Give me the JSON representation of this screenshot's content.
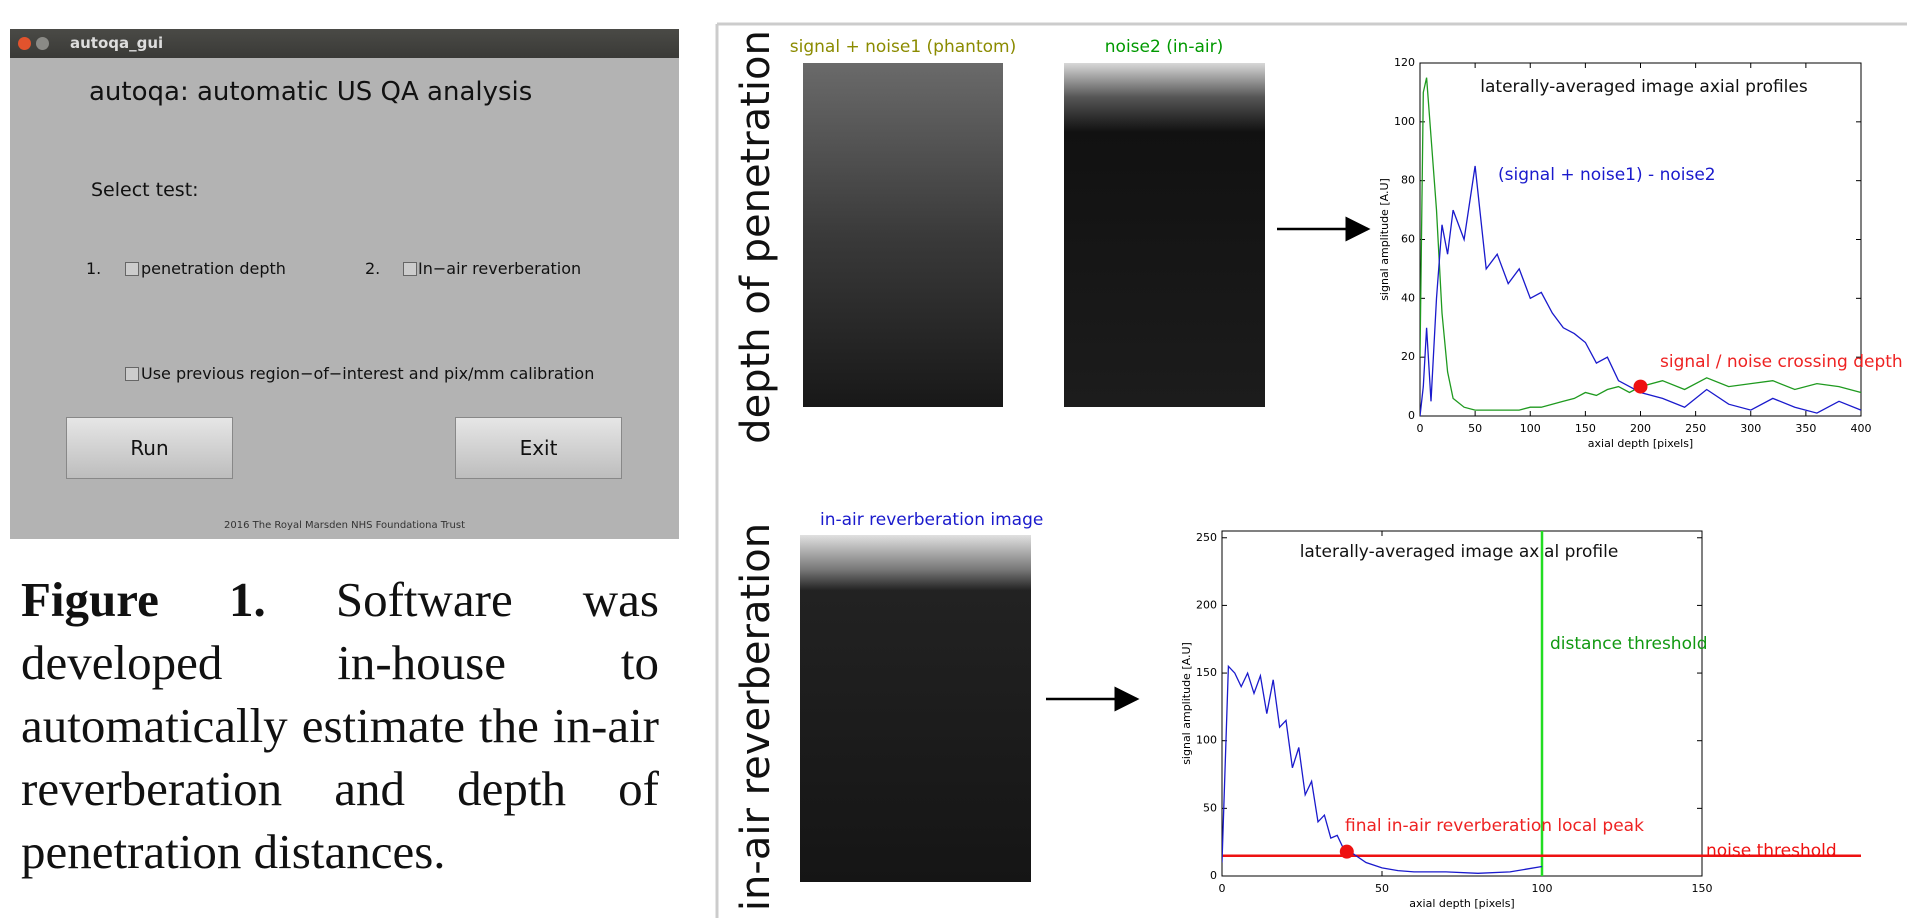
{
  "gui": {
    "window_title": "autoqa_gui",
    "heading": "autoqa: automatic US QA analysis",
    "select_label": "Select test:",
    "options": [
      {
        "number": "1.",
        "label": "penetration depth"
      },
      {
        "number": "2.",
        "label": "In−air reverberation"
      }
    ],
    "calibration_option": "Use previous region−of−interest and pix/mm calibration",
    "buttons": [
      "Run",
      "Exit"
    ],
    "footer": "2016 The Royal Marsden NHS Foundationa Trust"
  },
  "caption": {
    "label": "Figure 1.",
    "text": "Software was developed in-house to automatically estimate the in-air reverberation and depth of penetration distances."
  },
  "panel": {
    "row_labels": [
      "depth of penetration",
      "in-air reverberation"
    ],
    "images": [
      {
        "label": "signal + noise1 (phantom)",
        "color": "#8b8b00"
      },
      {
        "label": "noise2 (in-air)",
        "color": "#009900"
      },
      {
        "label": "in-air reverberation image",
        "color": "#1a1acc"
      }
    ]
  },
  "charts": [
    {
      "type": "line",
      "title": "laterally-averaged image axial profiles",
      "xlabel": "axial depth [pixels]",
      "ylabel": "signal amplitude [A.U]",
      "xlim": [
        0,
        400
      ],
      "ylim": [
        0,
        120
      ],
      "xticks": [
        0,
        50,
        100,
        150,
        200,
        250,
        300,
        350,
        400
      ],
      "yticks": [
        0,
        20,
        40,
        60,
        80,
        100,
        120
      ],
      "x": [
        0,
        3,
        6,
        10,
        15,
        20,
        25,
        30,
        40,
        50,
        60,
        70,
        80,
        90,
        100,
        110,
        120,
        130,
        140,
        150,
        160,
        170,
        180,
        190,
        200,
        220,
        240,
        260,
        280,
        300,
        320,
        340,
        360,
        380,
        400
      ],
      "series": [
        {
          "color": "#1f9a1f",
          "values": [
            20,
            110,
            115,
            95,
            70,
            35,
            15,
            6,
            3,
            2,
            2,
            2,
            2,
            2,
            3,
            3,
            4,
            5,
            6,
            8,
            7,
            9,
            10,
            8,
            10,
            12,
            9,
            13,
            10,
            11,
            12,
            9,
            11,
            10,
            8
          ]
        },
        {
          "color": "#1a1acc",
          "values": [
            0,
            10,
            30,
            5,
            40,
            65,
            55,
            70,
            60,
            85,
            50,
            55,
            45,
            50,
            40,
            42,
            35,
            30,
            28,
            25,
            18,
            20,
            12,
            10,
            8,
            6,
            3,
            9,
            4,
            2,
            6,
            3,
            1,
            5,
            2
          ]
        }
      ],
      "annotations": [
        {
          "text": "(signal + noise1) - noise2",
          "color": "#1a1acc"
        },
        {
          "text": "signal / noise crossing depth",
          "color": "#ee2222"
        }
      ],
      "markers": [
        {
          "x": 200,
          "y": 10,
          "color": "#ee1111"
        }
      ]
    },
    {
      "type": "line",
      "title": "laterally-averaged image axial profile",
      "xlabel": "axial depth [pixels]",
      "ylabel": "signal amplitude [A.U]",
      "xlim": [
        0,
        150
      ],
      "ylim": [
        0,
        255
      ],
      "xticks": [
        0,
        50,
        100,
        150
      ],
      "yticks": [
        0,
        50,
        100,
        150,
        200,
        250
      ],
      "x": [
        0,
        2,
        4,
        6,
        8,
        10,
        12,
        14,
        16,
        18,
        20,
        22,
        24,
        26,
        28,
        30,
        32,
        34,
        36,
        38,
        40,
        45,
        50,
        55,
        60,
        70,
        80,
        90,
        95,
        100
      ],
      "series": [
        {
          "color": "#1a1acc",
          "values": [
            10,
            155,
            150,
            140,
            150,
            135,
            148,
            120,
            145,
            110,
            115,
            80,
            95,
            60,
            70,
            40,
            45,
            28,
            30,
            20,
            18,
            10,
            6,
            4,
            3,
            3,
            2,
            3,
            5,
            7
          ]
        }
      ],
      "vlines": [
        {
          "value": 100,
          "color": "#22dd22",
          "label": "distance threshold",
          "label_color": "#119911"
        }
      ],
      "hlines": [
        {
          "value": 15,
          "color": "#ee1111",
          "label": "noise threshold",
          "label_color": "#ee1111"
        }
      ],
      "annotations": [
        {
          "text": "final in-air reverberation local peak",
          "color": "#ee2222"
        }
      ],
      "markers": [
        {
          "x": 39,
          "y": 18,
          "color": "#ee1111"
        }
      ]
    }
  ]
}
